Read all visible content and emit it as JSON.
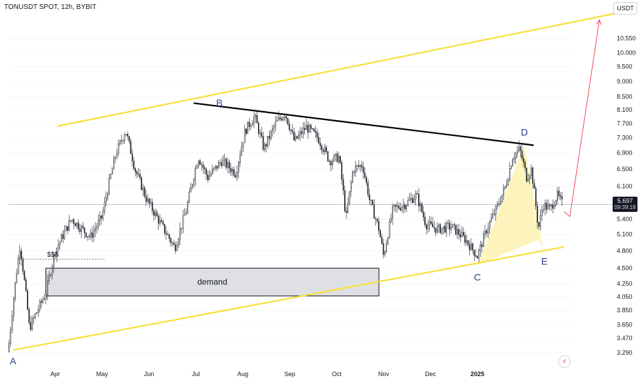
{
  "header": {
    "symbol_title": "TONUSDT SPOT, 12h, BYBIT",
    "currency": "USDT"
  },
  "current_price": {
    "value": "5.697",
    "countdown": "09:39:18"
  },
  "colors": {
    "candle": "#131722",
    "trendline": "#f5e13a",
    "resistance": "#000000",
    "pattern_fill": "#fbf2b0",
    "projection": "#f23645",
    "demand_fill": "#dfe0e3"
  },
  "chart_data": {
    "type": "candlestick",
    "title": "TONUSDT SPOT, 12h, BYBIT",
    "y_scale": "log",
    "ylim": [
      3.15,
      11.8
    ],
    "y_ticks": [
      "10.550",
      "10.000",
      "9.500",
      "9.000",
      "8.500",
      "8.100",
      "7.700",
      "7.300",
      "6.900",
      "6.500",
      "6.100",
      "5.400",
      "5.100",
      "4.800",
      "4.500",
      "4.250",
      "4.050",
      "3.850",
      "3.650",
      "3.470",
      "3.290"
    ],
    "x_ticks": [
      "Apr",
      "May",
      "Jun",
      "Jul",
      "Aug",
      "Sep",
      "Oct",
      "Nov",
      "Dec",
      "2025"
    ],
    "price_path": [
      {
        "t": 0.0,
        "p": 3.3
      },
      {
        "t": 0.25,
        "p": 4.9
      },
      {
        "t": 0.45,
        "p": 3.6
      },
      {
        "t": 0.8,
        "p": 4.1
      },
      {
        "t": 1.0,
        "p": 4.8
      },
      {
        "t": 1.35,
        "p": 5.4
      },
      {
        "t": 1.75,
        "p": 5.05
      },
      {
        "t": 2.0,
        "p": 5.45
      },
      {
        "t": 2.3,
        "p": 6.9
      },
      {
        "t": 2.5,
        "p": 7.5
      },
      {
        "t": 2.7,
        "p": 6.5
      },
      {
        "t": 2.95,
        "p": 5.8
      },
      {
        "t": 3.25,
        "p": 5.3
      },
      {
        "t": 3.55,
        "p": 4.85
      },
      {
        "t": 3.8,
        "p": 5.6
      },
      {
        "t": 4.05,
        "p": 6.8
      },
      {
        "t": 4.25,
        "p": 6.3
      },
      {
        "t": 4.55,
        "p": 6.7
      },
      {
        "t": 4.85,
        "p": 6.4
      },
      {
        "t": 5.05,
        "p": 7.5
      },
      {
        "t": 5.25,
        "p": 7.9
      },
      {
        "t": 5.45,
        "p": 7.0
      },
      {
        "t": 5.7,
        "p": 7.7
      },
      {
        "t": 5.9,
        "p": 8.0
      },
      {
        "t": 6.1,
        "p": 7.2
      },
      {
        "t": 6.35,
        "p": 7.6
      },
      {
        "t": 6.6,
        "p": 7.3
      },
      {
        "t": 6.85,
        "p": 6.7
      },
      {
        "t": 7.05,
        "p": 6.8
      },
      {
        "t": 7.2,
        "p": 5.4
      },
      {
        "t": 7.35,
        "p": 6.5
      },
      {
        "t": 7.55,
        "p": 6.6
      },
      {
        "t": 7.7,
        "p": 5.8
      },
      {
        "t": 7.9,
        "p": 5.2
      },
      {
        "t": 8.0,
        "p": 4.7
      },
      {
        "t": 8.2,
        "p": 5.6
      },
      {
        "t": 8.45,
        "p": 5.7
      },
      {
        "t": 8.7,
        "p": 5.9
      },
      {
        "t": 8.9,
        "p": 5.3
      },
      {
        "t": 9.15,
        "p": 5.2
      },
      {
        "t": 9.45,
        "p": 5.25
      },
      {
        "t": 9.75,
        "p": 5.0
      },
      {
        "t": 10.0,
        "p": 4.7
      },
      {
        "t": 10.2,
        "p": 5.2
      },
      {
        "t": 10.4,
        "p": 5.6
      },
      {
        "t": 10.6,
        "p": 6.1
      },
      {
        "t": 10.75,
        "p": 6.8
      },
      {
        "t": 10.9,
        "p": 7.0
      },
      {
        "t": 11.05,
        "p": 6.3
      },
      {
        "t": 11.15,
        "p": 6.5
      },
      {
        "t": 11.3,
        "p": 5.2
      },
      {
        "t": 11.4,
        "p": 5.7
      },
      {
        "t": 11.55,
        "p": 5.6
      },
      {
        "t": 11.7,
        "p": 5.9
      },
      {
        "t": 11.82,
        "p": 5.7
      }
    ],
    "annotations": {
      "points": [
        {
          "label": "A",
          "t": 0.1,
          "p": 3.3
        },
        {
          "label": "B",
          "t": 4.5,
          "p": 8.0
        },
        {
          "label": "C",
          "t": 10.0,
          "p": 4.55
        },
        {
          "label": "D",
          "t": 11.0,
          "p": 7.1
        },
        {
          "label": "E",
          "t": 11.4,
          "p": 4.85
        }
      ],
      "zones": [
        {
          "label": "demand",
          "t_start": 0.8,
          "t_end": 7.9,
          "p_low": 4.06,
          "p_high": 4.5
        }
      ],
      "liquidity_label": "$$$",
      "liquidity_level": 4.65
    }
  }
}
